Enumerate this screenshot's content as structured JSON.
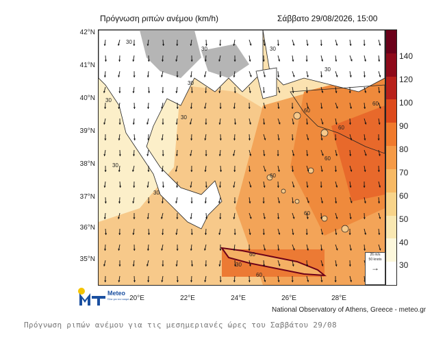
{
  "header": {
    "title": "Πρόγνωση ριπών ανέμου (km/h)",
    "datetime": "Σάββατο 29/08/2026, 15:00"
  },
  "axes": {
    "latitudes": [
      "42°N",
      "41°N",
      "40°N",
      "39°N",
      "38°N",
      "37°N",
      "36°N",
      "35°N"
    ],
    "longitudes": [
      "20°E",
      "22°E",
      "24°E",
      "26°E",
      "28°E"
    ]
  },
  "legend": {
    "levels": [
      "140",
      "120",
      "100",
      "90",
      "80",
      "70",
      "60",
      "50",
      "40",
      "30"
    ],
    "colors": [
      "#6b0019",
      "#8e0a1a",
      "#b8211b",
      "#dd4a1c",
      "#f07a2c",
      "#f59a46",
      "#f7b964",
      "#f8d48a",
      "#f9e8b2",
      "#fdf8dc",
      "#ffffff"
    ]
  },
  "reference_vector": {
    "speed": "26 m/s",
    "knots": "50 knots"
  },
  "map_labels": [
    "30",
    "30",
    "30",
    "30",
    "30",
    "30",
    "30",
    "30",
    "60",
    "60",
    "60",
    "60",
    "60",
    "60",
    "60",
    "30",
    "60",
    "30"
  ],
  "land_color": "#b5b5b5",
  "sea_color": "#f7c98a",
  "logo": {
    "name": "Meteo",
    "slogan": "Όλα για τον καιρό"
  },
  "credit": "National Observatory of Athens, Greece - meteo.gr",
  "caption": "Πρόγνωση ριπών ανέμου για τις μεσημεριανές ώρες του Σαββάτου 29/08"
}
